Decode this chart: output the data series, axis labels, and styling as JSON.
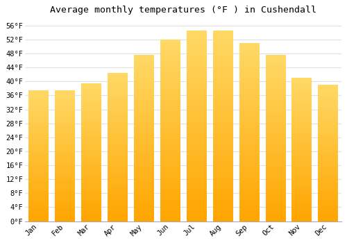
{
  "title": "Average monthly temperatures (°F ) in Cushendall",
  "months": [
    "Jan",
    "Feb",
    "Mar",
    "Apr",
    "May",
    "Jun",
    "Jul",
    "Aug",
    "Sep",
    "Oct",
    "Nov",
    "Dec"
  ],
  "values": [
    37.5,
    37.5,
    39.5,
    42.5,
    47.5,
    52,
    54.5,
    54.5,
    51,
    47.5,
    41,
    39
  ],
  "bar_color_top": "#FFD966",
  "bar_color_bottom": "#FFA500",
  "ylim": [
    0,
    58
  ],
  "yticks": [
    0,
    4,
    8,
    12,
    16,
    20,
    24,
    28,
    32,
    36,
    40,
    44,
    48,
    52,
    56
  ],
  "ytick_labels": [
    "0°F",
    "4°F",
    "8°F",
    "12°F",
    "16°F",
    "20°F",
    "24°F",
    "28°F",
    "32°F",
    "36°F",
    "40°F",
    "44°F",
    "48°F",
    "52°F",
    "56°F"
  ],
  "background_color": "#FFFFFF",
  "plot_bg_color": "#FFFFFF",
  "grid_color": "#E0E0E0",
  "title_fontsize": 9.5,
  "tick_fontsize": 7.5,
  "font_family": "monospace",
  "bar_width": 0.75
}
